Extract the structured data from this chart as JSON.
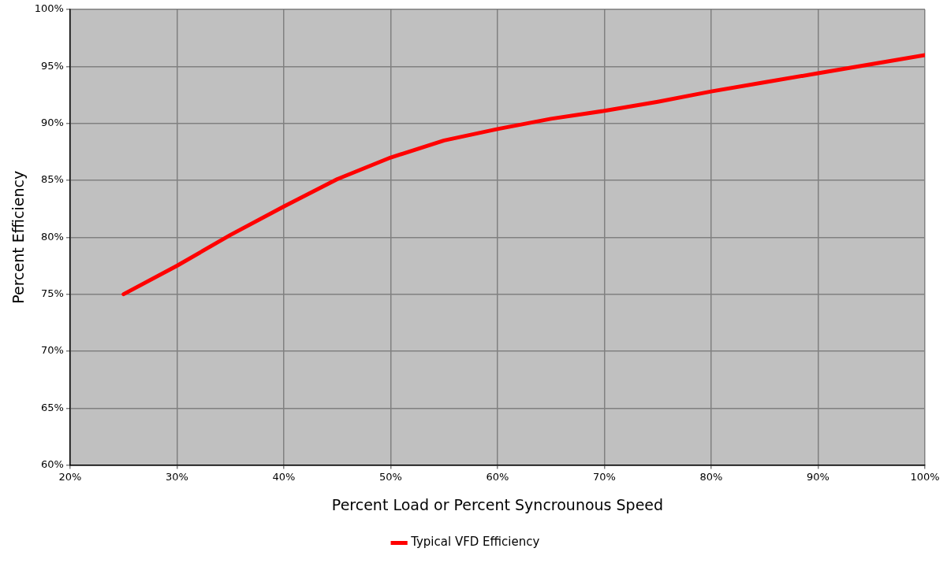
{
  "chart_data": {
    "type": "line",
    "xlabel": "Percent Load or Percent Syncrounous Speed",
    "ylabel": "Percent Efficiency",
    "x": [
      25,
      30,
      35,
      40,
      45,
      50,
      55,
      60,
      65,
      70,
      75,
      80,
      85,
      90,
      95,
      100
    ],
    "series": [
      {
        "name": "Typical VFD Efficiency",
        "color": "#ff0000",
        "values": [
          75,
          77.5,
          80.2,
          82.7,
          85.1,
          87,
          88.5,
          89.5,
          90.4,
          91.1,
          91.9,
          92.8,
          93.6,
          94.4,
          95.2,
          96
        ]
      }
    ],
    "xlim": [
      20,
      100
    ],
    "ylim": [
      60,
      100
    ],
    "xticks": [
      {
        "value": 20,
        "label": "20%"
      },
      {
        "value": 30,
        "label": "30%"
      },
      {
        "value": 40,
        "label": "40%"
      },
      {
        "value": 50,
        "label": "50%"
      },
      {
        "value": 60,
        "label": "60%"
      },
      {
        "value": 70,
        "label": "70%"
      },
      {
        "value": 80,
        "label": "80%"
      },
      {
        "value": 90,
        "label": "90%"
      },
      {
        "value": 100,
        "label": "100%"
      }
    ],
    "yticks": [
      {
        "value": 60,
        "label": "60%"
      },
      {
        "value": 65,
        "label": "65%"
      },
      {
        "value": 70,
        "label": "70%"
      },
      {
        "value": 75,
        "label": "75%"
      },
      {
        "value": 80,
        "label": "80%"
      },
      {
        "value": 85,
        "label": "85%"
      },
      {
        "value": 90,
        "label": "90%"
      },
      {
        "value": 95,
        "label": "95%"
      },
      {
        "value": 100,
        "label": "100%"
      }
    ],
    "grid": true,
    "legend": "bottom",
    "marker": "none",
    "line_style": "solid"
  }
}
